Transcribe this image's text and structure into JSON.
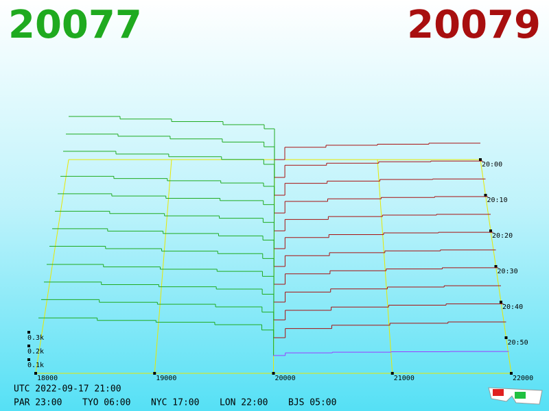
{
  "chart_data": {
    "type": "depth3d",
    "bid_label": "20077",
    "ask_label": "20079",
    "bid_color": "#1faa1f",
    "ask_color": "#a80f0f",
    "front_ask_color": "#9b3bff",
    "xlim": [
      18000,
      22000
    ],
    "xticks": [
      18000,
      19000,
      20000,
      21000,
      22000
    ],
    "zlim": [
      0,
      500
    ],
    "zticks": [
      {
        "value": 100,
        "label": "0.1k"
      },
      {
        "value": 200,
        "label": "0.2k"
      },
      {
        "value": 300,
        "label": "0.3k"
      }
    ],
    "times": [
      "20:00",
      null,
      "20:10",
      null,
      "20:20",
      null,
      "20:30",
      null,
      "20:40",
      null,
      "20:50",
      null
    ],
    "bid_prices": [
      18000,
      18500,
      19000,
      19500,
      19900,
      20000
    ],
    "ask_prices": [
      20000,
      20100,
      20500,
      21000,
      21500
    ],
    "slices": [
      {
        "bids": [
          420,
          395,
          370,
          340,
          300,
          0
        ],
        "asks": [
          0,
          120,
          140,
          150,
          160
        ]
      },
      {
        "bids": [
          410,
          390,
          365,
          335,
          290,
          0
        ],
        "asks": [
          0,
          115,
          135,
          148,
          155
        ]
      },
      {
        "bids": [
          405,
          380,
          355,
          330,
          285,
          0
        ],
        "asks": [
          0,
          110,
          130,
          145,
          150
        ]
      },
      {
        "bids": [
          330,
          310,
          290,
          270,
          240,
          0
        ],
        "asks": [
          0,
          105,
          128,
          140,
          148
        ]
      },
      {
        "bids": [
          325,
          305,
          285,
          265,
          230,
          0
        ],
        "asks": [
          0,
          100,
          125,
          138,
          145
        ]
      },
      {
        "bids": [
          320,
          300,
          280,
          260,
          225,
          0
        ],
        "asks": [
          0,
          95,
          120,
          135,
          140
        ]
      },
      {
        "bids": [
          315,
          295,
          275,
          255,
          220,
          0
        ],
        "asks": [
          0,
          90,
          115,
          130,
          138
        ]
      },
      {
        "bids": [
          310,
          290,
          270,
          250,
          210,
          0
        ],
        "asks": [
          0,
          85,
          110,
          125,
          135
        ]
      },
      {
        "bids": [
          300,
          280,
          262,
          245,
          205,
          0
        ],
        "asks": [
          0,
          80,
          105,
          120,
          130
        ]
      },
      {
        "bids": [
          295,
          275,
          258,
          240,
          200,
          0
        ],
        "asks": [
          0,
          75,
          100,
          115,
          125
        ]
      },
      {
        "bids": [
          290,
          270,
          255,
          235,
          195,
          0
        ],
        "asks": [
          0,
          70,
          95,
          110,
          120
        ]
      },
      {
        "bids": [
          280,
          262,
          248,
          230,
          190,
          0
        ],
        "asks": [
          0,
          20,
          25,
          28,
          30
        ]
      }
    ]
  },
  "footer": {
    "utc": "UTC 2022-09-17 21:00",
    "cities": [
      "PAR 23:00",
      "TYO 06:00",
      "NYC 17:00",
      "LON 22:00",
      "BJS 05:00"
    ]
  }
}
